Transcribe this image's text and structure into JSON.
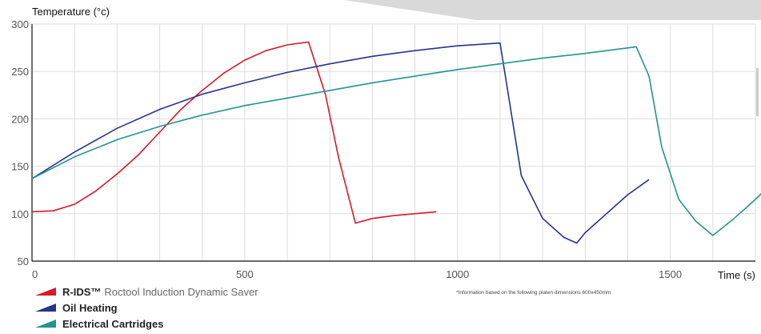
{
  "chart_data": {
    "type": "line",
    "ylabel": "Temperature (°c)",
    "xlabel": "Time (s)",
    "xlim": [
      0,
      1700
    ],
    "ylim": [
      50,
      300
    ],
    "xticks": [
      0,
      500,
      1000,
      1500
    ],
    "yticks": [
      50,
      100,
      150,
      200,
      250,
      300
    ],
    "grid": true,
    "series": [
      {
        "name": "R-IDS™",
        "description": "Roctool Induction Dynamic Saver",
        "color": "#d9182d",
        "x": [
          0,
          50,
          100,
          150,
          200,
          250,
          300,
          350,
          400,
          450,
          500,
          550,
          600,
          650,
          690,
          720,
          760,
          800,
          850,
          900,
          950
        ],
        "y": [
          102,
          103,
          110,
          124,
          142,
          162,
          186,
          210,
          230,
          248,
          262,
          272,
          278,
          281,
          225,
          160,
          90,
          95,
          98,
          100,
          102
        ]
      },
      {
        "name": "Oil Heating",
        "description": "",
        "color": "#26348b",
        "x": [
          0,
          100,
          200,
          300,
          400,
          500,
          600,
          700,
          800,
          900,
          1000,
          1100,
          1150,
          1200,
          1250,
          1280,
          1300,
          1350,
          1400,
          1450
        ],
        "y": [
          137,
          165,
          190,
          210,
          226,
          238,
          249,
          258,
          266,
          272,
          277,
          280,
          140,
          95,
          75,
          69,
          80,
          100,
          120,
          136
        ]
      },
      {
        "name": "Electrical Cartridges",
        "description": "",
        "color": "#23948d",
        "x": [
          0,
          100,
          200,
          300,
          400,
          500,
          600,
          700,
          800,
          900,
          1000,
          1100,
          1200,
          1300,
          1420,
          1450,
          1480,
          1520,
          1560,
          1600,
          1650,
          1700,
          1750
        ],
        "y": [
          137,
          160,
          178,
          192,
          204,
          214,
          222,
          230,
          238,
          245,
          252,
          258,
          264,
          269,
          276,
          245,
          170,
          115,
          92,
          77,
          95,
          115,
          137
        ]
      }
    ]
  },
  "footnote": "*Information based on the following platen dimensions 600x450mm",
  "legend": [
    {
      "name": "R-IDS™",
      "rest": "Roctool Induction Dynamic Saver",
      "color": "#d9182d"
    },
    {
      "name": "Oil Heating",
      "rest": "",
      "color": "#26348b"
    },
    {
      "name": "Electrical Cartridges",
      "rest": "",
      "color": "#23948d"
    }
  ]
}
